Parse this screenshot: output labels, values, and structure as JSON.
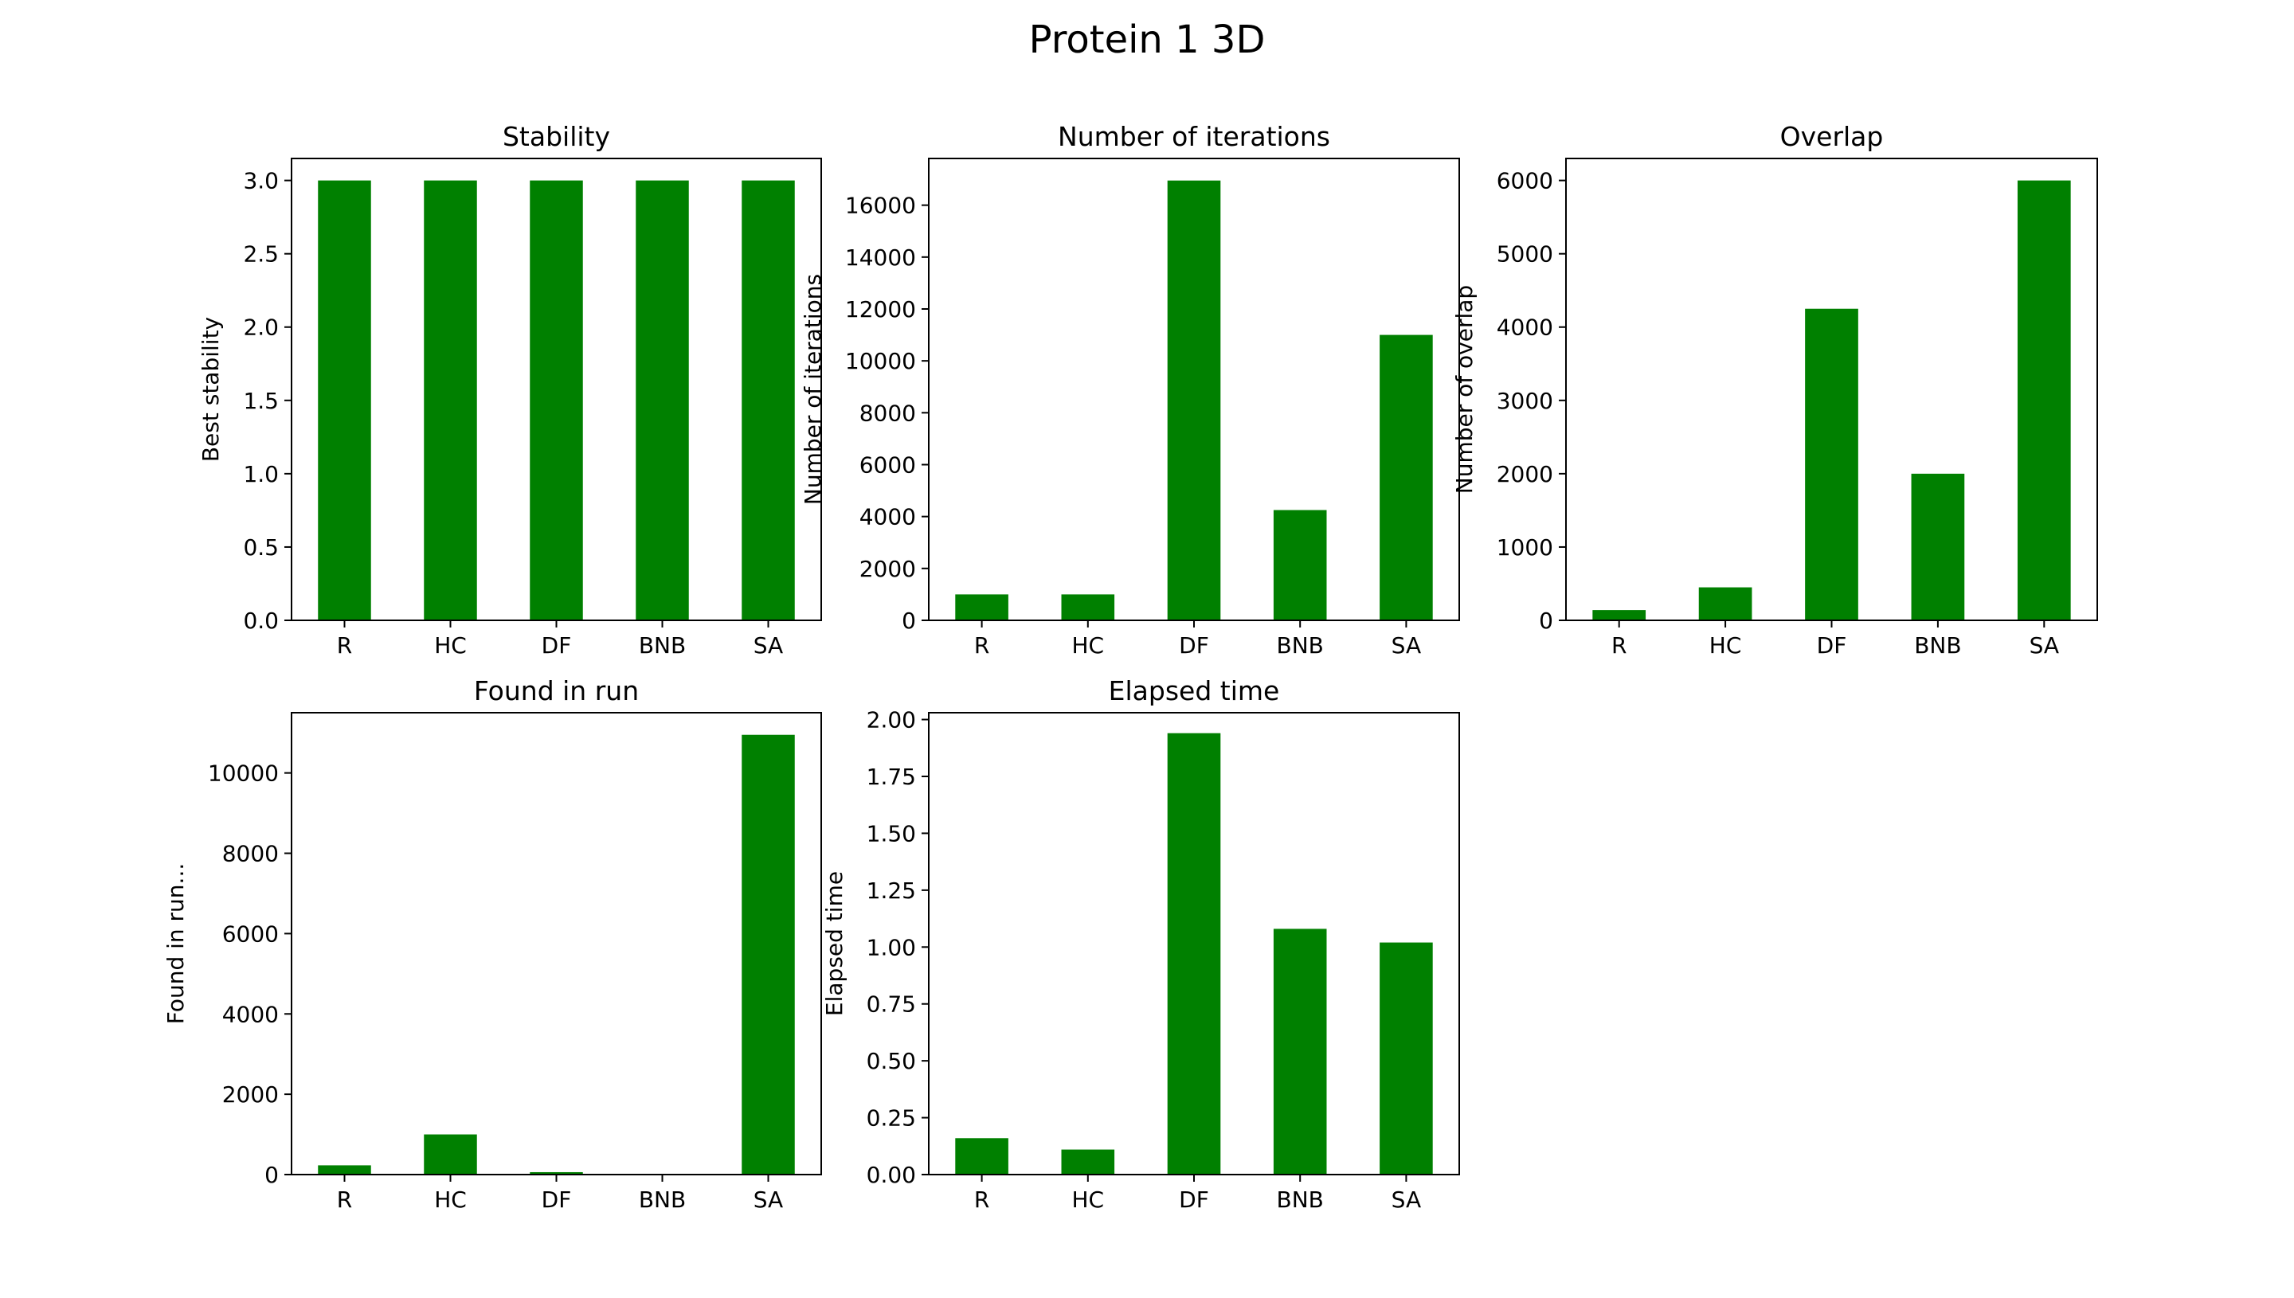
{
  "figure": {
    "title": "Protein 1 3D",
    "bar_color": "#008000"
  },
  "chart_data": [
    {
      "type": "bar",
      "title": "Stability",
      "xlabel": "",
      "ylabel": "Best stability",
      "categories": [
        "R",
        "HC",
        "DF",
        "BNB",
        "SA"
      ],
      "values": [
        3,
        3,
        3,
        3,
        3
      ],
      "ylim": [
        0,
        3.15
      ],
      "yticks": [
        0.0,
        0.5,
        1.0,
        1.5,
        2.0,
        2.5,
        3.0
      ],
      "ytick_labels": [
        "0.0",
        "0.5",
        "1.0",
        "1.5",
        "2.0",
        "2.5",
        "3.0"
      ],
      "grid": false,
      "legend": "none"
    },
    {
      "type": "bar",
      "title": "Number of iterations",
      "xlabel": "",
      "ylabel": "Number of iterations",
      "categories": [
        "R",
        "HC",
        "DF",
        "BNB",
        "SA"
      ],
      "values": [
        1000,
        1000,
        16950,
        4250,
        11000
      ],
      "ylim": [
        0,
        17800
      ],
      "yticks": [
        0,
        2000,
        4000,
        6000,
        8000,
        10000,
        12000,
        14000,
        16000
      ],
      "ytick_labels": [
        "0",
        "2000",
        "4000",
        "6000",
        "8000",
        "10000",
        "12000",
        "14000",
        "16000"
      ],
      "grid": false,
      "legend": "none"
    },
    {
      "type": "bar",
      "title": "Overlap",
      "xlabel": "",
      "ylabel": "Number  of overlap",
      "categories": [
        "R",
        "HC",
        "DF",
        "BNB",
        "SA"
      ],
      "values": [
        140,
        450,
        4250,
        2000,
        6000
      ],
      "ylim": [
        0,
        6300
      ],
      "yticks": [
        0,
        1000,
        2000,
        3000,
        4000,
        5000,
        6000
      ],
      "ytick_labels": [
        "0",
        "1000",
        "2000",
        "3000",
        "4000",
        "5000",
        "6000"
      ],
      "grid": false,
      "legend": "none"
    },
    {
      "type": "bar",
      "title": "Found in run",
      "xlabel": "",
      "ylabel": "Found in run...",
      "categories": [
        "R",
        "HC",
        "DF",
        "BNB",
        "SA"
      ],
      "values": [
        230,
        1000,
        60,
        0,
        10950
      ],
      "ylim": [
        0,
        11500
      ],
      "yticks": [
        0,
        2000,
        4000,
        6000,
        8000,
        10000
      ],
      "ytick_labels": [
        "0",
        "2000",
        "4000",
        "6000",
        "8000",
        "10000"
      ],
      "grid": false,
      "legend": "none"
    },
    {
      "type": "bar",
      "title": "Elapsed time",
      "xlabel": "",
      "ylabel": "Elapsed time",
      "categories": [
        "R",
        "HC",
        "DF",
        "BNB",
        "SA"
      ],
      "values": [
        0.16,
        0.11,
        1.94,
        1.08,
        1.02
      ],
      "ylim": [
        0,
        2.03
      ],
      "yticks": [
        0.0,
        0.25,
        0.5,
        0.75,
        1.0,
        1.25,
        1.5,
        1.75,
        2.0
      ],
      "ytick_labels": [
        "0.00",
        "0.25",
        "0.50",
        "0.75",
        "1.00",
        "1.25",
        "1.50",
        "1.75",
        "2.00"
      ],
      "grid": false,
      "legend": "none"
    }
  ]
}
